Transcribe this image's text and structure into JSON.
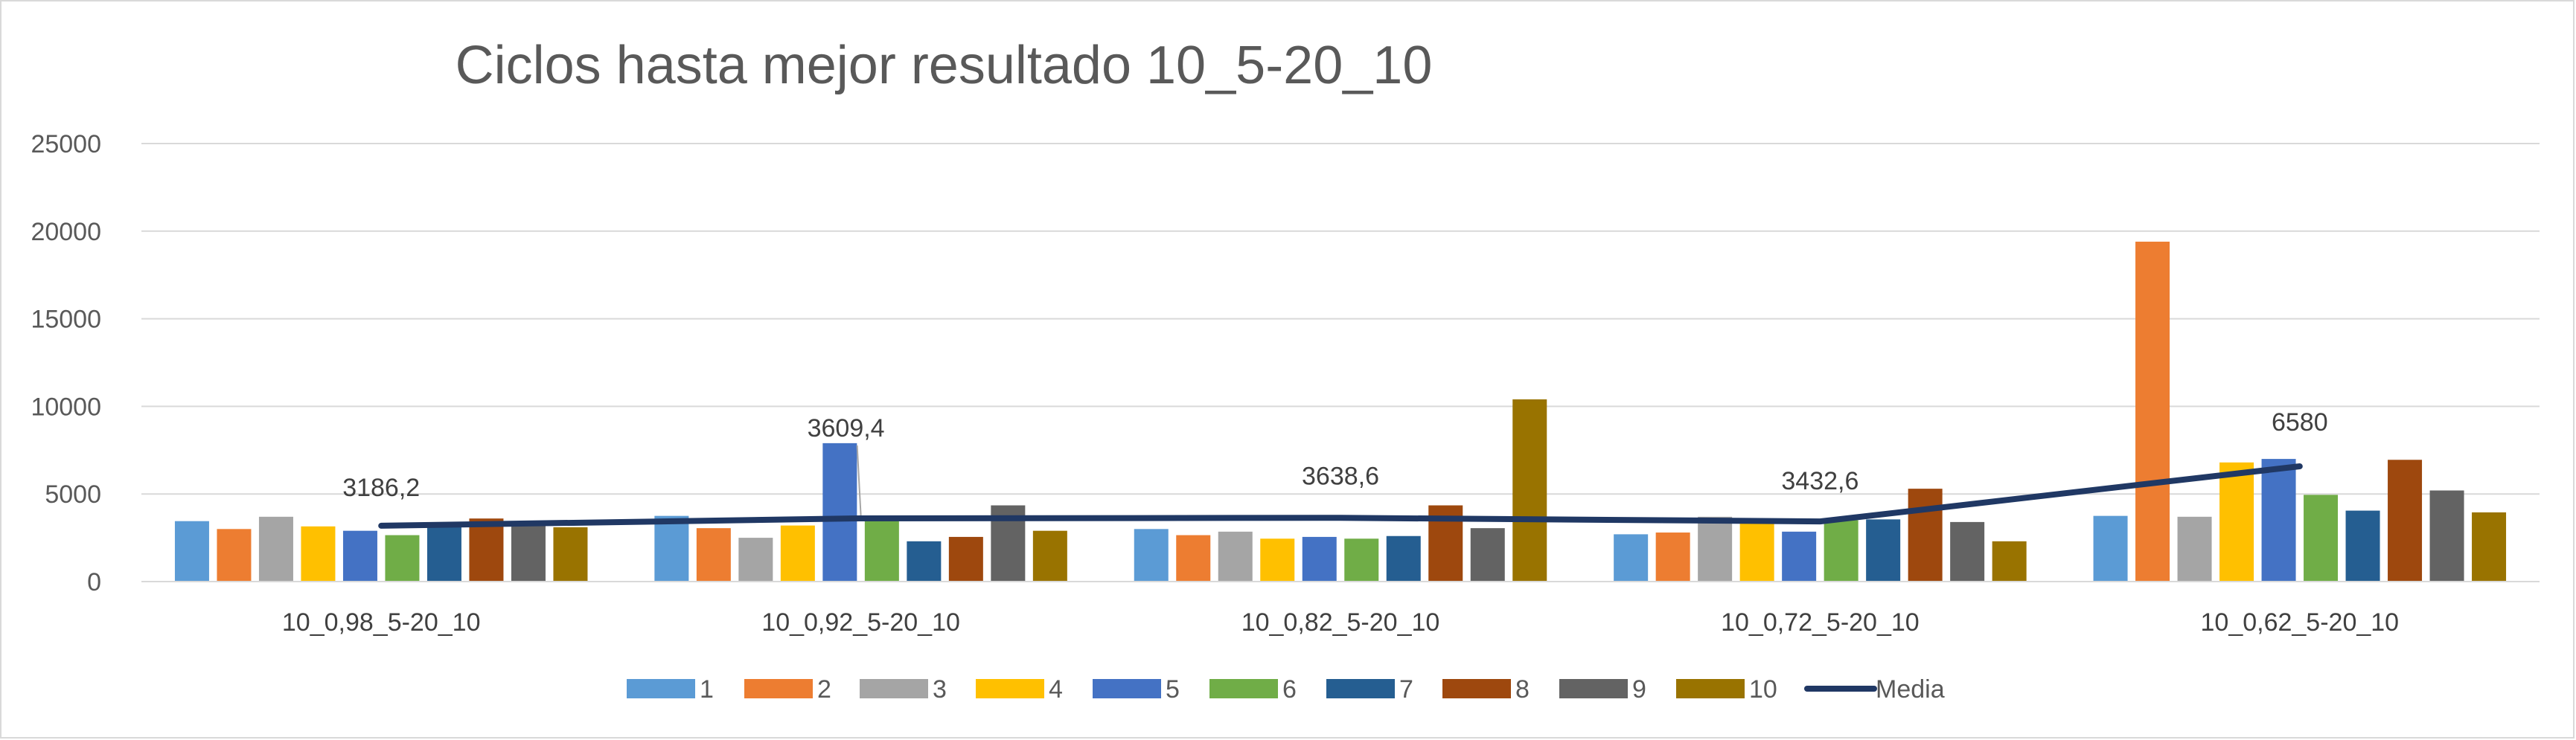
{
  "chart_data": {
    "type": "bar",
    "title": "Ciclos  hasta mejor resultado 10_5-20_10",
    "categories": [
      "10_0,98_5-20_10",
      "10_0,92_5-20_10",
      "10_0,82_5-20_10",
      "10_0,72_5-20_10",
      "10_0,62_5-20_10"
    ],
    "ylim": [
      0,
      25000
    ],
    "yticks": [
      0,
      5000,
      10000,
      15000,
      20000,
      25000
    ],
    "ytick_labels": [
      "0",
      "5000",
      "10000",
      "15000",
      "20000",
      "25000"
    ],
    "grid": true,
    "legend_position": "bottom",
    "series": [
      {
        "name": "1",
        "color": "#5b9bd5",
        "values": [
          3450,
          3750,
          3000,
          2700,
          3750
        ]
      },
      {
        "name": "2",
        "color": "#ed7d31",
        "values": [
          3000,
          3050,
          2650,
          2800,
          19400
        ]
      },
      {
        "name": "3",
        "color": "#a5a5a5",
        "values": [
          3700,
          2500,
          2850,
          3700,
          3700
        ]
      },
      {
        "name": "4",
        "color": "#ffc000",
        "values": [
          3150,
          3200,
          2450,
          3350,
          6800
        ]
      },
      {
        "name": "5",
        "color": "#4472c4",
        "values": [
          2900,
          7900,
          2550,
          2850,
          7000
        ]
      },
      {
        "name": "6",
        "color": "#70ad47",
        "values": [
          2650,
          3700,
          2450,
          3500,
          4950
        ]
      },
      {
        "name": "7",
        "color": "#255e91",
        "values": [
          3100,
          2300,
          2600,
          3550,
          4050
        ]
      },
      {
        "name": "8",
        "color": "#9e480e",
        "values": [
          3600,
          2550,
          4350,
          5300,
          6950
        ]
      },
      {
        "name": "9",
        "color": "#636363",
        "values": [
          3300,
          4350,
          3050,
          3400,
          5200
        ]
      },
      {
        "name": "10",
        "color": "#997300",
        "values": [
          3100,
          2900,
          10400,
          2300,
          3950
        ]
      }
    ],
    "line_series": {
      "name": "Media",
      "color": "#203864",
      "values": [
        3186.2,
        3609.4,
        3638.6,
        3432.6,
        6580
      ],
      "labels": [
        "3186,2",
        "3609,4",
        "3638,6",
        "3432,6",
        "6580"
      ]
    }
  }
}
